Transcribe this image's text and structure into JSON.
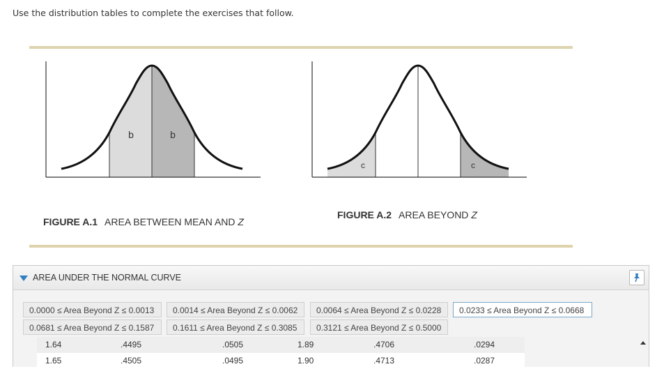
{
  "instruction": "Use the distribution tables to complete the exercises that follow.",
  "figure1": {
    "number": "FIGURE A.1",
    "title_prefix": "AREA BETWEEN MEAN AND ",
    "title_var": "Z",
    "label_left": "b",
    "label_right": "b"
  },
  "figure2": {
    "number": "FIGURE A.2",
    "title_prefix": "AREA BEYOND ",
    "title_var": "Z",
    "label_left": "c",
    "label_right": "c"
  },
  "panel": {
    "title": "AREA UNDER THE NORMAL CURVE",
    "tabs": [
      "0.0000 ≤ Area Beyond Z ≤ 0.0013",
      "0.0014 ≤ Area Beyond Z ≤ 0.0062",
      "0.0064 ≤ Area Beyond Z ≤ 0.0228",
      "0.0233 ≤ Area Beyond Z ≤ 0.0668",
      "0.0681 ≤ Area Beyond Z ≤ 0.1587",
      "0.1611 ≤ Area Beyond Z ≤ 0.3085",
      "0.3121 ≤ Area Beyond Z ≤ 0.5000"
    ],
    "active_tab": 3,
    "rows": [
      [
        "1.64",
        ".4495",
        ".0505",
        "1.89",
        ".4706",
        ".0294"
      ],
      [
        "1.65",
        ".4505",
        ".0495",
        "1.90",
        ".4713",
        ".0287"
      ]
    ]
  },
  "colors": {
    "rule": "#ddd3ad",
    "accent": "#2f7fc1",
    "shade_light": "#dcdcdc",
    "shade_dark": "#b7b7b7"
  }
}
